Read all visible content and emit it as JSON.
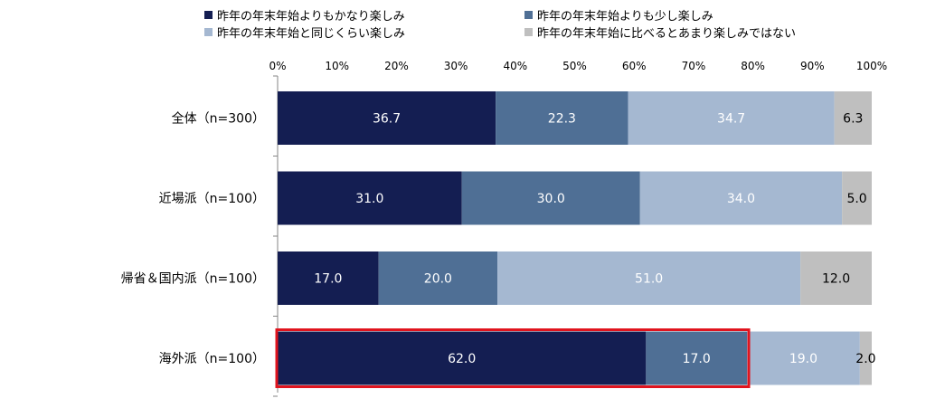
{
  "chart_data": {
    "type": "bar",
    "orientation": "horizontal",
    "stacked": true,
    "percent": true,
    "categories": [
      "全体（n=300）",
      "近場派（n=100）",
      "帰省＆国内派（n=100）",
      "海外派（n=100）"
    ],
    "series": [
      {
        "name": "昨年の年末年始よりもかなり楽しみ",
        "values": [
          36.7,
          31.0,
          17.0,
          62.0
        ],
        "labels": [
          "36.7",
          "31.0",
          "17.0",
          "62.0"
        ],
        "color": "#141e52",
        "label_color": "#ffffff"
      },
      {
        "name": "昨年の年末年始よりも少し楽しみ",
        "values": [
          22.3,
          30.0,
          20.0,
          17.0
        ],
        "labels": [
          "22.3",
          "30.0",
          "20.0",
          "17.0"
        ],
        "color": "#4f6f95",
        "label_color": "#ffffff"
      },
      {
        "name": "昨年の年末年始と同じくらい楽しみ",
        "values": [
          34.7,
          34.0,
          51.0,
          19.0
        ],
        "labels": [
          "34.7",
          "34.0",
          "51.0",
          "19.0"
        ],
        "color": "#a5b8d1",
        "label_color": "#ffffff"
      },
      {
        "name": "昨年の年末年始に比べるとあまり楽しみではない",
        "values": [
          6.3,
          5.0,
          12.0,
          2.0
        ],
        "labels": [
          "6.3",
          "5.0",
          "12.0",
          "2.0"
        ],
        "color": "#bfbfbf",
        "label_color": "#000000"
      }
    ],
    "x_ticks": [
      "0%",
      "10%",
      "20%",
      "30%",
      "40%",
      "50%",
      "60%",
      "70%",
      "80%",
      "90%",
      "100%"
    ],
    "xlim": [
      0,
      100
    ],
    "legend_position": "top",
    "highlight": {
      "category_index": 3,
      "series_count": 2,
      "color": "#e0141e"
    }
  }
}
